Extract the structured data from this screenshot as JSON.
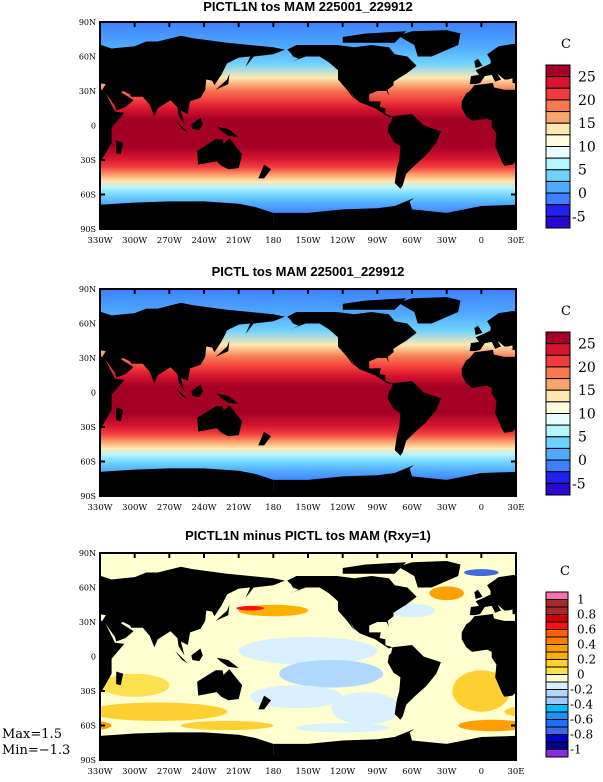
{
  "panels": [
    {
      "title": "PICTL1N tos MAM 225001_229912",
      "field": "sst",
      "colorbar": {
        "unit": "C",
        "colors": [
          "#a50026",
          "#d7152e",
          "#f03c3c",
          "#f87850",
          "#fca46c",
          "#fee8b0",
          "#fffce0",
          "#e8ffff",
          "#b4f5ff",
          "#6ed2ff",
          "#50aaff",
          "#3c80ff",
          "#2020f0",
          "#2808d0"
        ],
        "labels": [
          "25",
          "20",
          "15",
          "10",
          "5",
          "0",
          "-5"
        ]
      }
    },
    {
      "title": "PICTL tos MAM 225001_229912",
      "field": "sst",
      "colorbar": {
        "unit": "C",
        "colors": [
          "#a50026",
          "#d7152e",
          "#f03c3c",
          "#f87850",
          "#fca46c",
          "#fee8b0",
          "#fffce0",
          "#e8ffff",
          "#b4f5ff",
          "#6ed2ff",
          "#50aaff",
          "#3c80ff",
          "#2020f0",
          "#2808d0"
        ],
        "labels": [
          "25",
          "20",
          "15",
          "10",
          "5",
          "0",
          "-5"
        ]
      }
    },
    {
      "title": "PICTL1N minus PICTL tos MAM (Rxy=1)",
      "field": "diff",
      "colorbar": {
        "unit": "C",
        "colors": [
          "#ff70b0",
          "#a52a2a",
          "#a52a2a",
          "#cd0000",
          "#ff1010",
          "#ff6000",
          "#ff7f00",
          "#ffa000",
          "#ffb000",
          "#ffd030",
          "#ffe050",
          "#ffffd0",
          "#d8f0ff",
          "#b0d8ff",
          "#a0c8ff",
          "#00bfff",
          "#1e90ff",
          "#2070ff",
          "#4169e1",
          "#0000cd",
          "#00008b",
          "#8a2be2"
        ],
        "labels": [
          "1",
          "0.8",
          "0.6",
          "0.4",
          "0.2",
          "0",
          "-0.2",
          "-0.4",
          "-0.6",
          "-0.8",
          "-1"
        ]
      }
    }
  ],
  "axes": {
    "lat_labels": [
      "90N",
      "60N",
      "30N",
      "0",
      "30S",
      "60S",
      "90S"
    ],
    "lon_labels": [
      "330W",
      "300W",
      "270W",
      "240W",
      "210W",
      "180",
      "150W",
      "120W",
      "90W",
      "60W",
      "30W",
      "0",
      "30E"
    ]
  },
  "stats": {
    "max": "Max=1.5",
    "min": "Min=−1.3"
  }
}
